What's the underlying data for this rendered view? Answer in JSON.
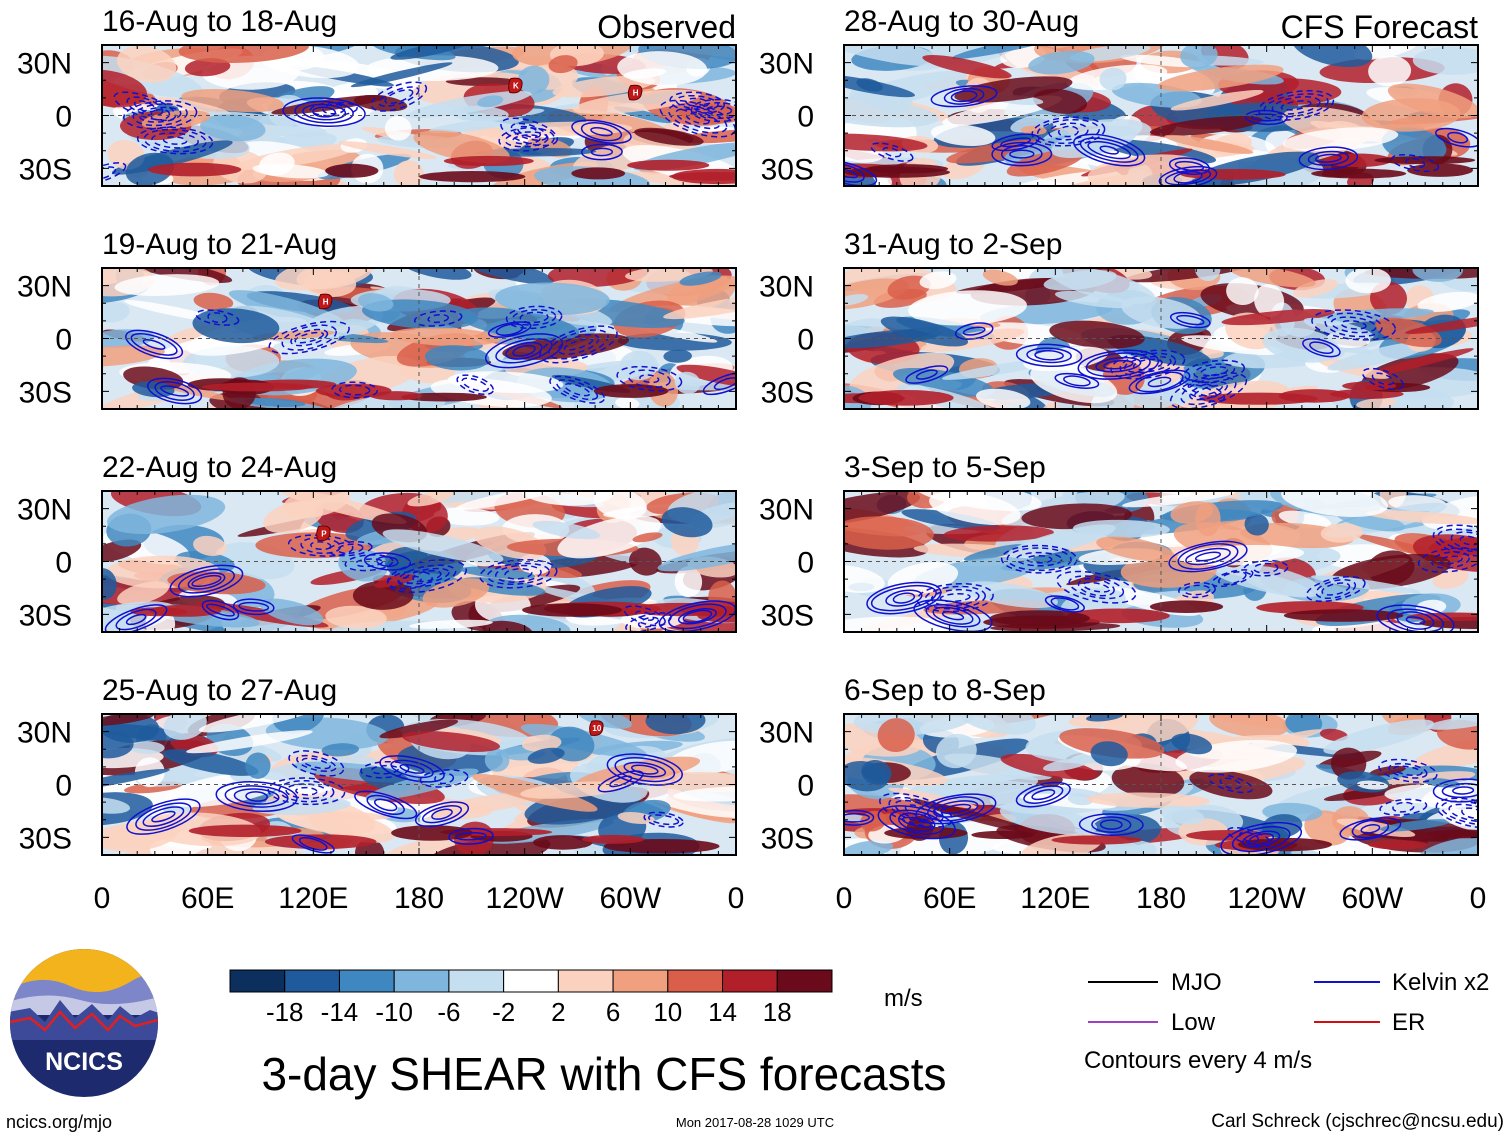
{
  "chart_data": {
    "type": "heatmap",
    "title": "3-day SHEAR with CFS forecasts",
    "units": "m/s",
    "panel_headers": {
      "left": "Observed",
      "right": "CFS Forecast"
    },
    "panels": [
      {
        "label": "16-Aug to 18-Aug",
        "kind": "observed",
        "storms": [
          {
            "symbol": "K",
            "lon": 235,
            "lat": 17
          },
          {
            "symbol": "H",
            "lon": 303,
            "lat": 13
          }
        ]
      },
      {
        "label": "19-Aug to 21-Aug",
        "kind": "observed",
        "storms": [
          {
            "symbol": "H",
            "lon": 127,
            "lat": 21
          }
        ]
      },
      {
        "label": "22-Aug to 24-Aug",
        "kind": "observed",
        "storms": [
          {
            "symbol": "P",
            "lon": 126,
            "lat": 16
          }
        ]
      },
      {
        "label": "25-Aug to 27-Aug",
        "kind": "observed",
        "storms": [
          {
            "symbol": "10",
            "lon": 281,
            "lat": 32
          }
        ]
      },
      {
        "label": "28-Aug to 30-Aug",
        "kind": "forecast",
        "storms": []
      },
      {
        "label": "31-Aug to 2-Sep",
        "kind": "forecast",
        "storms": []
      },
      {
        "label": "3-Sep to 5-Sep",
        "kind": "forecast",
        "storms": []
      },
      {
        "label": "6-Sep to 8-Sep",
        "kind": "forecast",
        "storms": []
      }
    ],
    "y_ticks": [
      "30N",
      "0",
      "30S"
    ],
    "y_tick_values": [
      30,
      0,
      -30
    ],
    "ylim": [
      -40,
      40
    ],
    "x_ticks": [
      "0",
      "60E",
      "120E",
      "180",
      "120W",
      "60W",
      "0"
    ],
    "x_tick_values": [
      0,
      60,
      120,
      180,
      240,
      300,
      360
    ],
    "xlim": [
      0,
      360
    ],
    "colorbar": {
      "levels": [
        "-18",
        "-14",
        "-10",
        "-6",
        "-2",
        "2",
        "6",
        "10",
        "14",
        "18"
      ],
      "colors": [
        "#0d2f5e",
        "#1f5a9c",
        "#3f87c0",
        "#7fb6dd",
        "#c5def0",
        "#ffffff",
        "#fbd2c0",
        "#f0a07f",
        "#d95f4a",
        "#b11f2a",
        "#6a0a1a"
      ]
    },
    "legend": [
      {
        "label": "MJO",
        "color": "#000000"
      },
      {
        "label": "Kelvin x2",
        "color": "#1010d0"
      },
      {
        "label": "Low",
        "color": "#a040c0"
      },
      {
        "label": "ER",
        "color": "#d01010"
      }
    ],
    "contour_note": "Contours every 4 m/s"
  },
  "footer": {
    "logo_text": "NCICS",
    "url": "ncics.org/mjo",
    "timestamp": "Mon 2017-08-28 1029 UTC",
    "author": "Carl Schreck (cjschrec@ncsu.edu)"
  }
}
